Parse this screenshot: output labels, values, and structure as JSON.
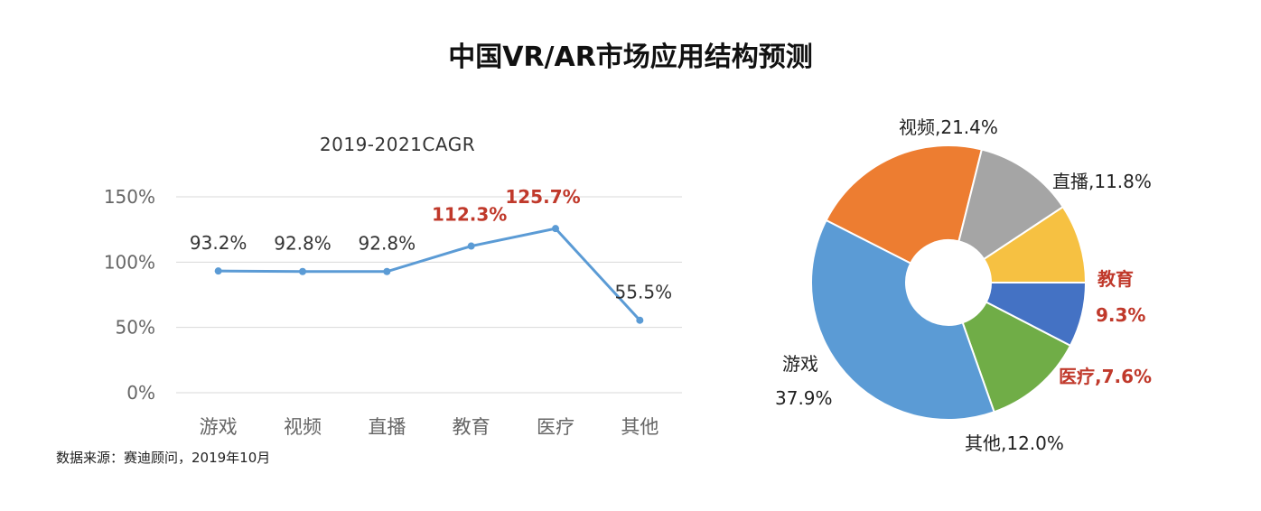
{
  "title": "中国VR/AR市场应用结构预测",
  "source": "数据来源：赛迪顾问，2019年10月",
  "chart_data": [
    {
      "type": "line",
      "title": "2019-2021CAGR",
      "categories": [
        "游戏",
        "视频",
        "直播",
        "教育",
        "医疗",
        "其他"
      ],
      "values": [
        93.2,
        92.8,
        92.8,
        112.3,
        125.7,
        55.5
      ],
      "value_labels": [
        "93.2%",
        "92.8%",
        "92.8%",
        "112.3%",
        "125.7%",
        "55.5%"
      ],
      "highlight": [
        false,
        false,
        false,
        true,
        true,
        false
      ],
      "yticks": [
        "0%",
        "50%",
        "100%",
        "150%"
      ],
      "ylim": [
        0,
        150
      ],
      "grid": true,
      "colors": {
        "line": "#5b9bd5",
        "highlight": "#c0392b",
        "label": "#333333",
        "tick": "#666666",
        "grid": "#d9d9d9"
      }
    },
    {
      "type": "pie",
      "donut": true,
      "slices": [
        {
          "label": "视频",
          "value": 21.4,
          "text": "视频,21.4%",
          "color": "#ed7d31",
          "highlight": false
        },
        {
          "label": "直播",
          "value": 11.8,
          "text": "直播,11.8%",
          "color": "#a5a5a5",
          "highlight": false
        },
        {
          "label": "教育",
          "value": 9.3,
          "text": "教育",
          "text2": "9.3%",
          "color": "#f6c142",
          "highlight": true
        },
        {
          "label": "医疗",
          "value": 7.6,
          "text": "医疗,7.6%",
          "color": "#4472c4",
          "highlight": true
        },
        {
          "label": "其他",
          "value": 12.0,
          "text": "其他,12.0%",
          "color": "#70ad47",
          "highlight": false
        },
        {
          "label": "游戏",
          "value": 37.9,
          "text": "游戏",
          "text2": "37.9%",
          "color": "#5b9bd5",
          "highlight": false
        }
      ]
    }
  ]
}
